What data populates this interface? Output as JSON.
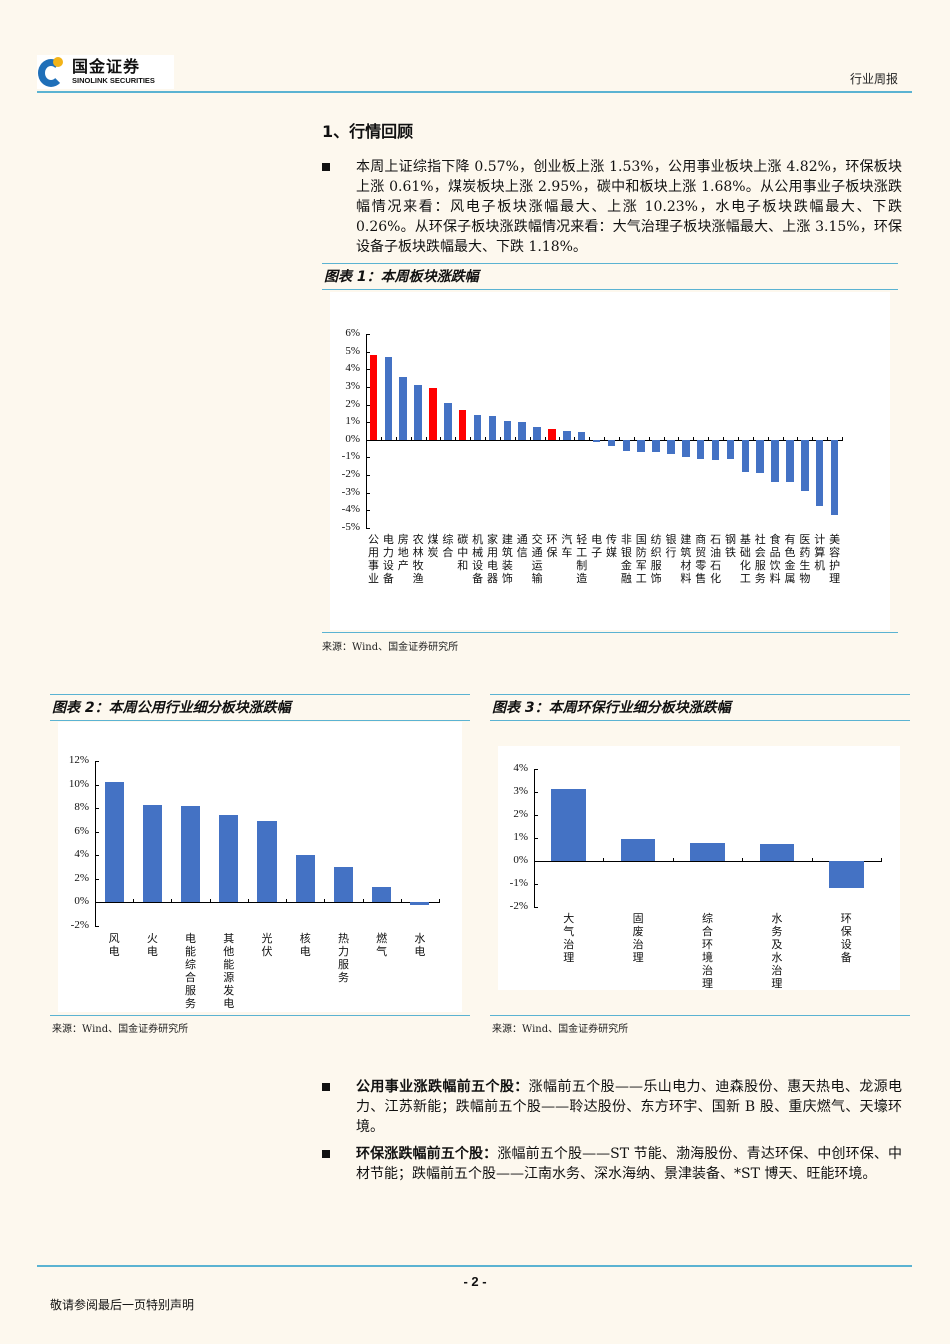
{
  "header": {
    "logo_cn": "国金证券",
    "logo_en": "SINOLINK SECURITIES",
    "report_type": "行业周报"
  },
  "section": {
    "title": "1、行情回顾",
    "summary": "本周上证综指下降 0.57%，创业板上涨 1.53%，公用事业板块上涨 4.82%，环保板块上涨 0.61%，煤炭板块上涨 2.95%，碳中和板块上涨 1.68%。从公用事业子板块涨跌幅情况来看：风电子板块涨幅最大、上涨 10.23%，水电子板块跌幅最大、下跌 0.26%。从环保子板块涨跌幅情况来看：大气治理子板块涨幅最大、上涨 3.15%，环保设备子板块跌幅最大、下跌 1.18%。"
  },
  "figures": {
    "fig1": {
      "title": "图表 1：本周板块涨跌幅",
      "source": "来源：Wind、国金证券研究所"
    },
    "fig2": {
      "title": "图表 2：本周公用行业细分板块涨跌幅",
      "source": "来源：Wind、国金证券研究所"
    },
    "fig3": {
      "title": "图表 3：本周环保行业细分板块涨跌幅",
      "source": "来源：Wind、国金证券研究所"
    }
  },
  "colors": {
    "bar": "#4472c4",
    "highlight": "#ff0000",
    "accent_line": "#5bb3d2",
    "page_bg": "#fdf8ee"
  },
  "chart_data": [
    {
      "type": "bar",
      "title": "图表 1：本周板块涨跌幅",
      "xlabel": "",
      "ylabel": "",
      "ylim": [
        -5,
        6
      ],
      "yticks": [
        "6%",
        "5%",
        "4%",
        "3%",
        "2%",
        "1%",
        "0%",
        "-1%",
        "-2%",
        "-3%",
        "-4%",
        "-5%"
      ],
      "categories": [
        "公用事业",
        "电力设备",
        "房地产",
        "农林牧渔",
        "煤炭",
        "综合",
        "碳中和",
        "机械设备",
        "家用电器",
        "建筑装饰",
        "通信",
        "交通运输",
        "环保",
        "汽车",
        "轻工制造",
        "电子",
        "传媒",
        "非银金融",
        "国防军工",
        "纺织服饰",
        "银行",
        "建筑材料",
        "商贸零售",
        "石油石化",
        "钢铁",
        "基础化工",
        "社会服务",
        "食品饮料",
        "有色金属",
        "医药生物",
        "计算机",
        "美容护理"
      ],
      "values": [
        4.82,
        4.7,
        3.55,
        3.1,
        2.95,
        2.1,
        1.68,
        1.42,
        1.36,
        1.05,
        1.0,
        0.72,
        0.61,
        0.48,
        0.46,
        -0.1,
        -0.35,
        -0.65,
        -0.68,
        -0.7,
        -0.8,
        -0.95,
        -1.1,
        -1.15,
        -1.1,
        -1.85,
        -1.9,
        -2.4,
        -2.4,
        -2.9,
        -3.75,
        -4.25
      ],
      "highlighted": [
        "公用事业",
        "煤炭",
        "碳中和",
        "环保"
      ],
      "grid": false,
      "legend": "none"
    },
    {
      "type": "bar",
      "title": "图表 2：本周公用行业细分板块涨跌幅",
      "xlabel": "",
      "ylabel": "",
      "ylim": [
        -2,
        12
      ],
      "yticks": [
        "12%",
        "10%",
        "8%",
        "6%",
        "4%",
        "2%",
        "0%",
        "-2%"
      ],
      "categories": [
        "风电",
        "火电",
        "电能综合服务",
        "其他能源发电",
        "光伏",
        "核电",
        "热力服务",
        "燃气",
        "水电"
      ],
      "values": [
        10.23,
        8.3,
        8.2,
        7.4,
        6.9,
        4.0,
        3.0,
        1.35,
        -0.26
      ],
      "grid": false,
      "legend": "none"
    },
    {
      "type": "bar",
      "title": "图表 3：本周环保行业细分板块涨跌幅",
      "xlabel": "",
      "ylabel": "",
      "ylim": [
        -2,
        4
      ],
      "yticks": [
        "4%",
        "3%",
        "2%",
        "1%",
        "0%",
        "-1%",
        "-2%"
      ],
      "categories": [
        "大气治理",
        "固废治理",
        "综合环境治理",
        "水务及水治理",
        "环保设备"
      ],
      "values": [
        3.15,
        0.95,
        0.78,
        0.72,
        -1.18
      ],
      "grid": false,
      "legend": "none"
    }
  ],
  "bullets": [
    {
      "label": "公用事业涨跌幅前五个股：",
      "text": "涨幅前五个股——乐山电力、迪森股份、惠天热电、龙源电力、江苏新能；跌幅前五个股——聆达股份、东方环宇、国新 B 股、重庆燃气、天壕环境。"
    },
    {
      "label": "环保涨跌幅前五个股：",
      "text": "涨幅前五个股——ST 节能、渤海股份、青达环保、中创环保、中材节能；跌幅前五个股——江南水务、深水海纳、景津装备、*ST 博天、旺能环境。"
    }
  ],
  "footer": {
    "page_number": "- 2 -",
    "disclaimer_note": "敬请参阅最后一页特别声明"
  }
}
